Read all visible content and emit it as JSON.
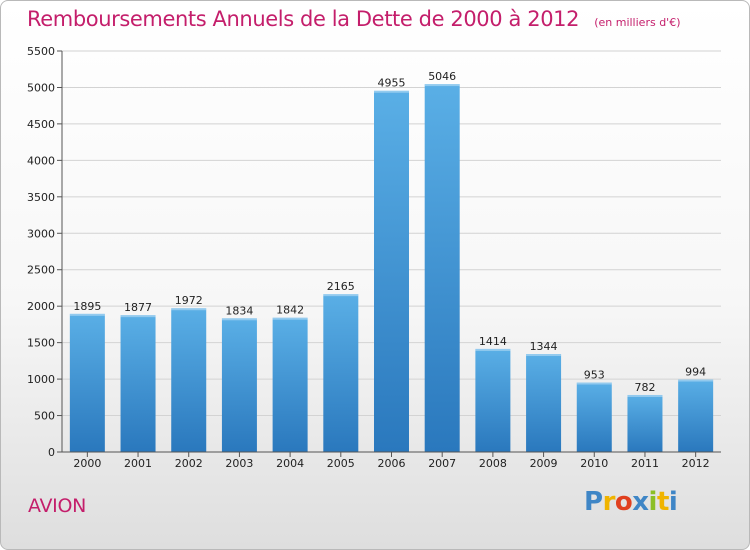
{
  "chart_data": {
    "type": "bar",
    "title": "Remboursements Annuels de la Dette de 2000 à 2012",
    "subtitle": "(en milliers d'€)",
    "categories": [
      "2000",
      "2001",
      "2002",
      "2003",
      "2004",
      "2005",
      "2006",
      "2007",
      "2008",
      "2009",
      "2010",
      "2011",
      "2012"
    ],
    "values": [
      1895,
      1877,
      1972,
      1834,
      1842,
      2165,
      4955,
      5046,
      1414,
      1344,
      953,
      782,
      994
    ],
    "ylim": [
      0,
      5500
    ],
    "yticks": [
      0,
      500,
      1000,
      1500,
      2000,
      2500,
      3000,
      3500,
      4000,
      4500,
      5000,
      5500
    ],
    "grid": true,
    "data_labels": true,
    "bar_color_top": "#5aafe6",
    "bar_color_bottom": "#2a78bd"
  },
  "commune": "AVION",
  "logo": {
    "text": "Proxiti",
    "letters": [
      {
        "char": "P",
        "color": "#3f86c6"
      },
      {
        "char": "r",
        "color": "#f0b400"
      },
      {
        "char": "o",
        "color": "#e0401f"
      },
      {
        "char": "x",
        "color": "#3f86c6"
      },
      {
        "char": "i",
        "color": "#8cbf26"
      },
      {
        "char": "t",
        "color": "#f0b400"
      },
      {
        "char": "i",
        "color": "#3f86c6"
      }
    ]
  },
  "colors": {
    "title": "#c41e6b",
    "grid": "#d3d3d3",
    "axis": "#555555"
  }
}
